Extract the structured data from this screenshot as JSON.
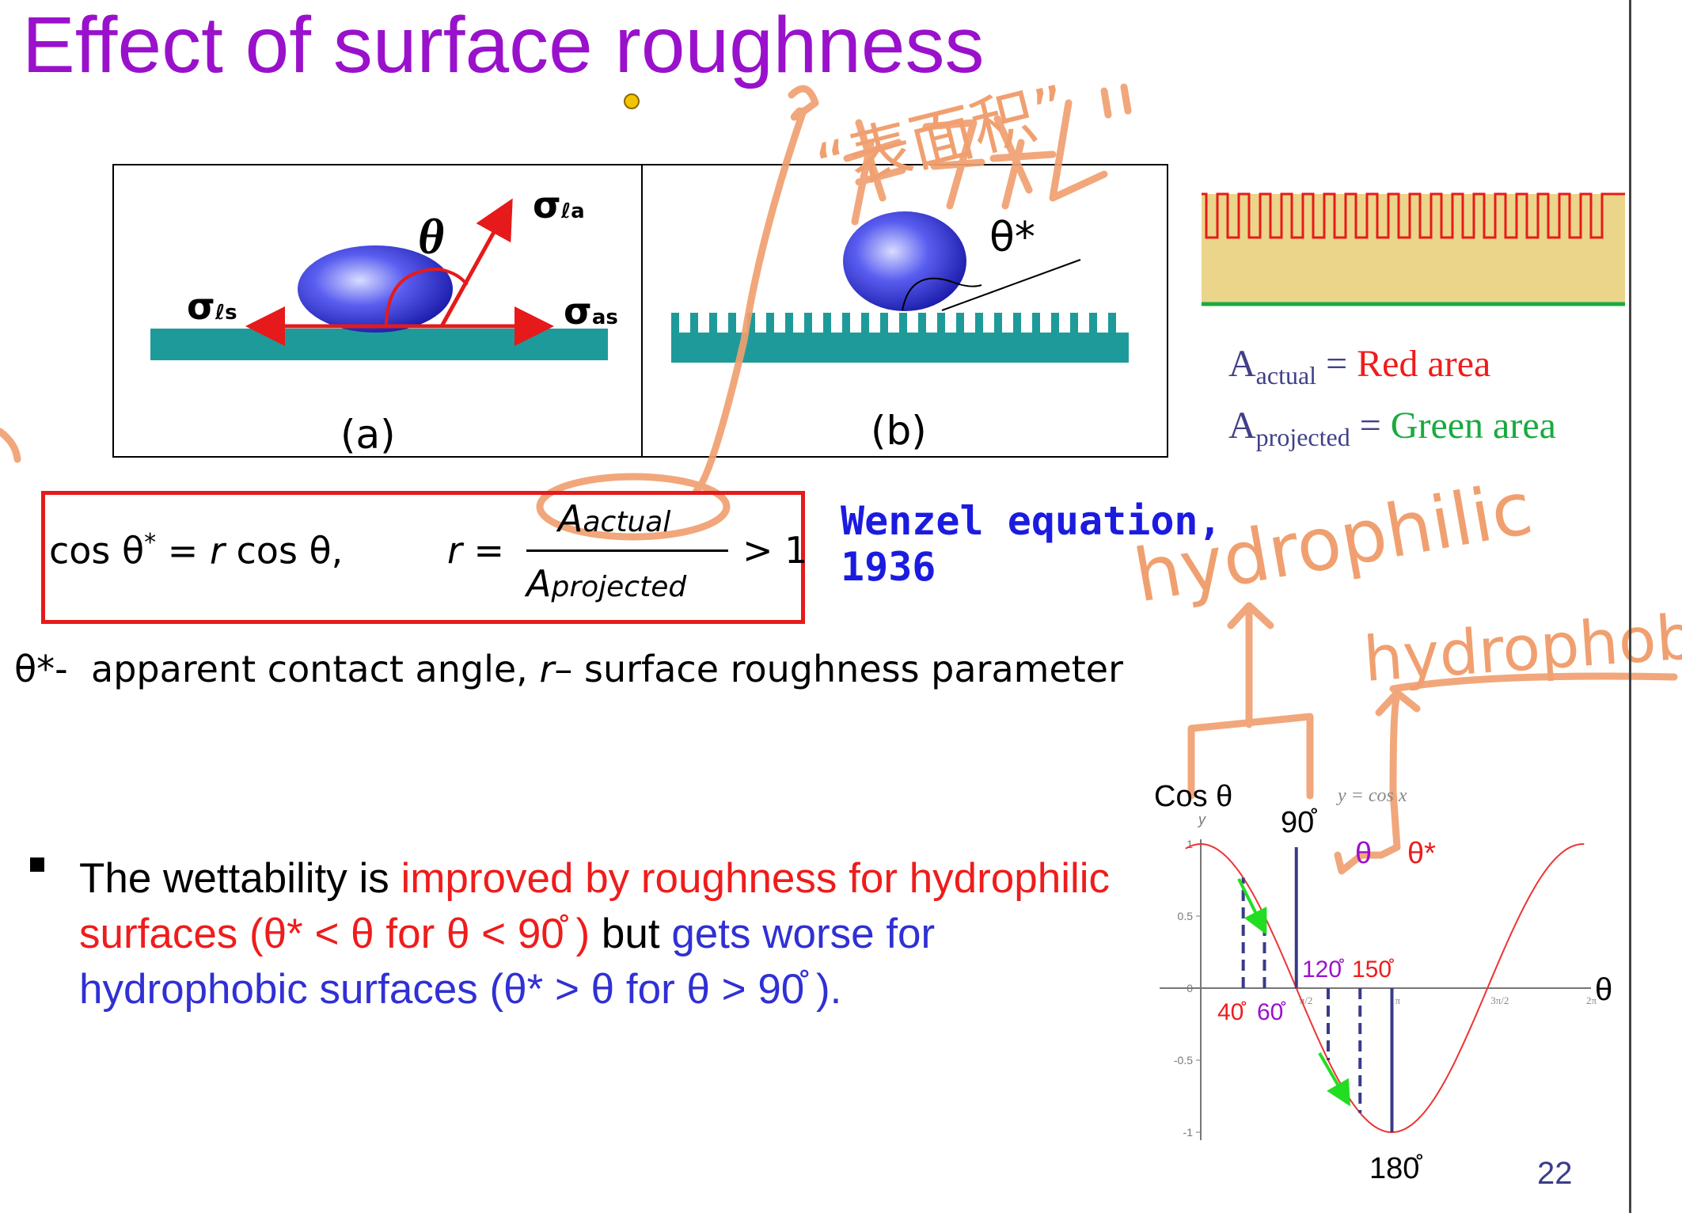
{
  "slide": {
    "title": "Effect of surface roughness",
    "page_number": "22"
  },
  "figure": {
    "label_a": "(a)",
    "label_b": "(b)",
    "theta": "θ",
    "theta_star": "θ*",
    "sigma_la": "σ",
    "sigma_la_sub": "ℓa",
    "sigma_ls": "σ",
    "sigma_ls_sub": "ℓs",
    "sigma_as": "σ",
    "sigma_as_sub": "as"
  },
  "legend": {
    "a_symbol": "A",
    "actual_sub": "actual",
    "eq": " = ",
    "red_area": "Red area",
    "projected_sub": "projected",
    "green_area": "Green area"
  },
  "equation": {
    "lhs": "cos θ",
    "star": "*",
    "eq1": " = ",
    "r": "r",
    "rhs": " cos θ,",
    "r2": "r",
    "eq2": " = ",
    "numerator": "A",
    "numerator_sub": "actual",
    "denominator": "A",
    "denominator_sub": "projected",
    "gt": "> 1",
    "caption_line1": "Wenzel equation,",
    "caption_line2": "1936"
  },
  "definition": {
    "theta_star": "θ*-",
    "text1": "apparent contact angle,",
    "r": "r",
    "text2": "– surface roughness parameter"
  },
  "bullet": {
    "part1": "The wettability is ",
    "part2": "improved by roughness for hydrophilic surfaces (θ* < θ for θ < 90̊ )",
    "part3": " but ",
    "part4": "gets worse for hydrophobic surfaces (θ* > θ for θ > 90̊ )."
  },
  "plot": {
    "ylabel": "Cos θ",
    "xlabel": "θ",
    "formula": "y = cos x",
    "y_axis_letter": "y",
    "deg90": "90̊",
    "deg180": "180̊",
    "deg40": "40̊",
    "deg60": "60̊",
    "deg120": "120̊",
    "deg150": "150̊",
    "theta_mark": "θ",
    "theta_star_mark": "θ*",
    "yticks": [
      "1",
      "0.5",
      "0",
      "-0.5",
      "-1"
    ],
    "xticks": [
      "π/2",
      "π",
      "3π/2",
      "2π"
    ]
  },
  "annotations": {
    "handwritten_cn": "“表面积”",
    "hydrophilic": "hydrophilic",
    "hydrophobic": "hydrophobic"
  },
  "colors": {
    "title": "#9a11cc",
    "accent_red": "#ef1c1c",
    "accent_blue": "#3030d4",
    "ink_orange": "#f0a070",
    "teal_surface": "#1f9a9a"
  },
  "chart_data": {
    "type": "line",
    "title": "",
    "xlabel": "θ",
    "ylabel": "Cos θ",
    "series": [
      {
        "name": "y = cos x",
        "x": [
          0,
          0.5236,
          1.0472,
          1.5708,
          2.0944,
          2.618,
          3.1416,
          3.6652,
          4.1888,
          4.7124,
          5.236,
          5.7596,
          6.2832
        ],
        "values": [
          1,
          0.866,
          0.5,
          0,
          -0.5,
          -0.866,
          -1,
          -0.866,
          -0.5,
          0,
          0.5,
          0.866,
          1
        ]
      }
    ],
    "xlim": [
      0,
      6.2832
    ],
    "ylim": [
      -1,
      1
    ],
    "grid": false
  }
}
